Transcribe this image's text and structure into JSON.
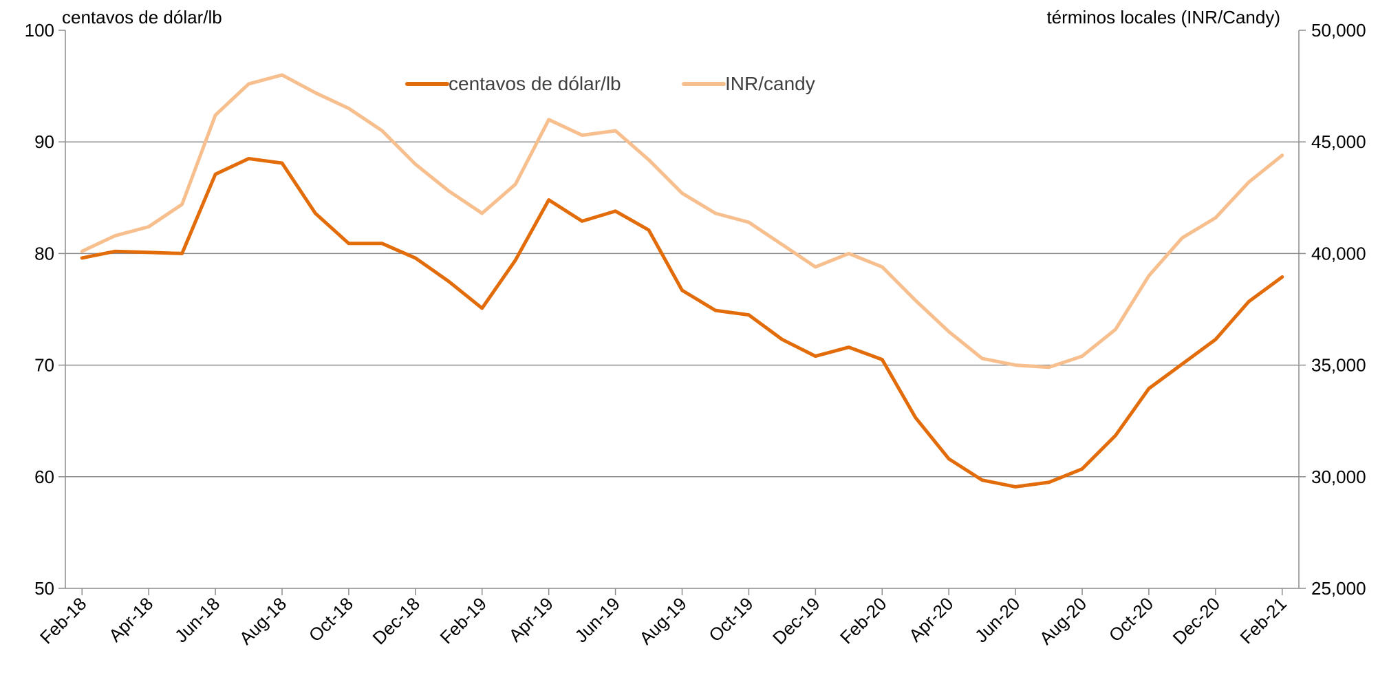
{
  "chart_data": {
    "type": "line",
    "left_axis_label": "centavos de dólar/lb",
    "right_axis_label": "términos locales (INR/Candy)",
    "grid": "horizontal",
    "legend_placement": "top-center",
    "x": [
      "Feb-18",
      "Mar-18",
      "Apr-18",
      "May-18",
      "Jun-18",
      "Jul-18",
      "Aug-18",
      "Sep-18",
      "Oct-18",
      "Nov-18",
      "Dec-18",
      "Jan-19",
      "Feb-19",
      "Mar-19",
      "Apr-19",
      "May-19",
      "Jun-19",
      "Jul-19",
      "Aug-19",
      "Sep-19",
      "Oct-19",
      "Nov-19",
      "Dec-19",
      "Jan-20",
      "Feb-20",
      "Mar-20",
      "Apr-20",
      "May-20",
      "Jun-20",
      "Jul-20",
      "Aug-20",
      "Sep-20",
      "Oct-20",
      "Nov-20",
      "Dec-20",
      "Jan-21",
      "Feb-21"
    ],
    "x_tick_labels": [
      "Feb-18",
      "Apr-18",
      "Jun-18",
      "Aug-18",
      "Oct-18",
      "Dec-18",
      "Feb-19",
      "Apr-19",
      "Jun-19",
      "Aug-19",
      "Oct-19",
      "Dec-19",
      "Feb-20",
      "Apr-20",
      "Jun-20",
      "Aug-20",
      "Oct-20",
      "Dec-20",
      "Feb-21"
    ],
    "y_left": {
      "ylim": [
        50,
        100
      ],
      "ticks": [
        "50",
        "60",
        "70",
        "80",
        "90",
        "100"
      ]
    },
    "y_right": {
      "ylim": [
        25000,
        50000
      ],
      "ticks": [
        "25,000",
        "30,000",
        "35,000",
        "40,000",
        "45,000",
        "50,000"
      ]
    },
    "series": [
      {
        "name": "centavos de dólar/lb",
        "axis": "left",
        "color": "#e36c0a",
        "values": [
          79.6,
          80.2,
          80.1,
          80.0,
          87.1,
          88.5,
          88.1,
          83.6,
          80.9,
          80.9,
          79.6,
          77.5,
          75.1,
          79.4,
          84.8,
          82.9,
          83.8,
          82.1,
          76.7,
          74.9,
          74.5,
          72.3,
          70.8,
          71.6,
          70.5,
          65.3,
          61.6,
          59.7,
          59.1,
          59.5,
          60.7,
          63.7,
          67.9,
          70.1,
          72.3,
          75.7,
          77.9
        ]
      },
      {
        "name": "INR/candy",
        "axis": "right",
        "color": "#f7bf8e",
        "values": [
          40100,
          40800,
          41200,
          42200,
          46200,
          47600,
          48000,
          47200,
          46500,
          45500,
          44000,
          42800,
          41800,
          43100,
          46000,
          45300,
          45500,
          44200,
          42700,
          41800,
          41400,
          40400,
          39400,
          40000,
          39400,
          37900,
          36500,
          35300,
          35000,
          34900,
          35400,
          36600,
          39000,
          40700,
          41600,
          43200,
          44400
        ]
      }
    ]
  }
}
